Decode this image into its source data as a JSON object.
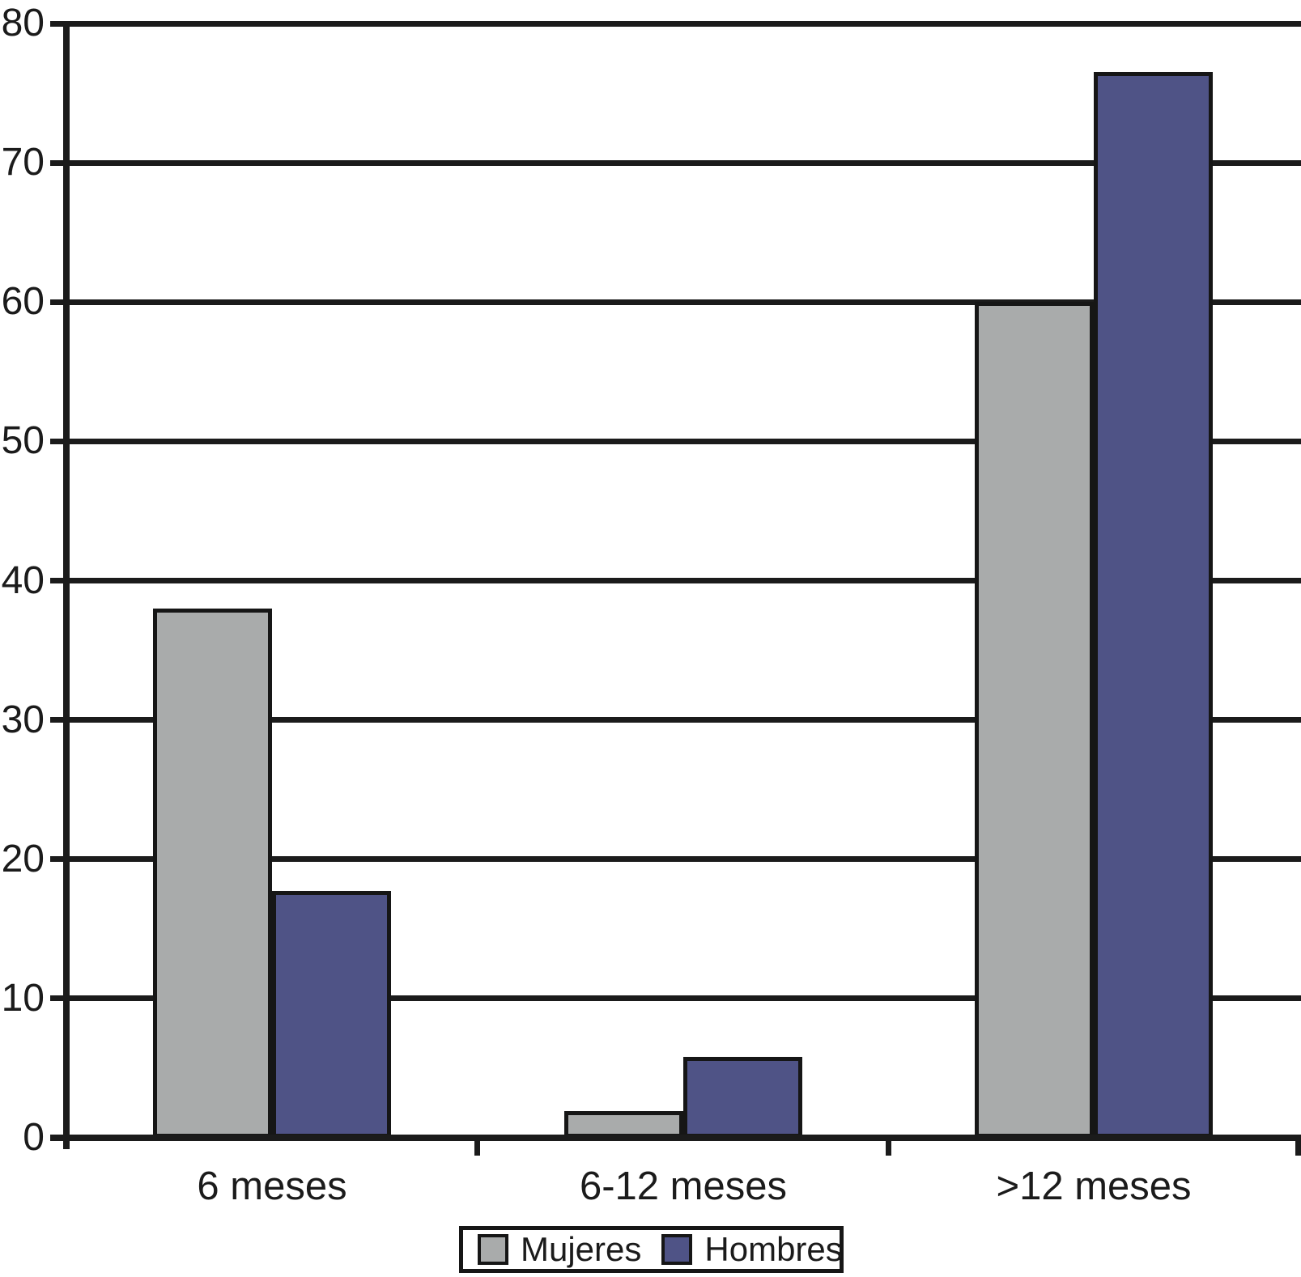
{
  "chart_data": {
    "type": "bar",
    "title": "",
    "xlabel": "",
    "ylabel": "",
    "categories": [
      "6 meses",
      "6-12 meses",
      ">12 meses"
    ],
    "series": [
      {
        "name": "Mujeres",
        "color": "#A9ABAB",
        "values": [
          38,
          1.9,
          60
        ]
      },
      {
        "name": "Hombres",
        "color": "#4F5386",
        "values": [
          17.7,
          5.8,
          76.5
        ]
      }
    ],
    "ylim": [
      0,
      80
    ],
    "yticks": [
      0,
      10,
      20,
      30,
      40,
      50,
      60,
      70,
      80
    ],
    "grid": true,
    "gridline_color": "#1b1b1b",
    "background_color": "#ffffff",
    "legend_position": "bottom",
    "legend_labels": [
      "Mujeres",
      "Hombres"
    ]
  }
}
